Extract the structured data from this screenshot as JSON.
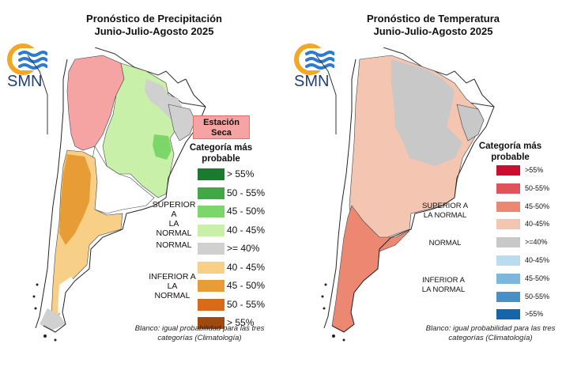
{
  "colors": {
    "prec_sup_55": "#1a7a2e",
    "prec_sup_50_55": "#42a844",
    "prec_sup_45_50": "#7dd66a",
    "prec_sup_40_45": "#c8f0a8",
    "prec_normal": "#d0d0d0",
    "prec_inf_40_45": "#f8cf86",
    "prec_inf_45_50": "#e89c35",
    "prec_inf_50_55": "#d86a1a",
    "prec_inf_55": "#a04a10",
    "dry": "#f6a3a3",
    "temp_sup_55": "#c8102e",
    "temp_sup_50_55": "#e0535a",
    "temp_sup_45_50": "#ec8872",
    "temp_sup_40_45": "#f4c5b0",
    "temp_normal": "#c8c8c8",
    "temp_inf_40_45": "#b9dcef",
    "temp_inf_45_50": "#7db7dc",
    "temp_inf_50_55": "#4a90c8",
    "temp_inf_55": "#1466a8",
    "logo_orange": "#f5a623",
    "logo_blue": "#2b7bd1"
  },
  "precip": {
    "title_line1": "Pronóstico de Precipitación",
    "title_line2": "Junio-Julio-Agosto 2025",
    "logo_text": "SMN",
    "dry_label_line1": "Estación",
    "dry_label_line2": "Seca",
    "legend_title_line1": "Categoría más",
    "legend_title_line2": "probable",
    "legend": [
      {
        "label": "> 55%",
        "color_key": "prec_sup_55"
      },
      {
        "label": "50 - 55%",
        "color_key": "prec_sup_50_55"
      },
      {
        "label": "45 - 50%",
        "color_key": "prec_sup_45_50"
      },
      {
        "label": "40 - 45%",
        "color_key": "prec_sup_40_45"
      },
      {
        "label": ">= 40%",
        "color_key": "prec_normal"
      },
      {
        "label": "40 - 45%",
        "color_key": "prec_inf_40_45"
      },
      {
        "label": "45 - 50%",
        "color_key": "prec_inf_45_50"
      },
      {
        "label": "50 - 55%",
        "color_key": "prec_inf_50_55"
      },
      {
        "label": "> 55%",
        "color_key": "prec_inf_55"
      }
    ],
    "superior_label_line1": "SUPERIOR A",
    "superior_label_line2": "LA NORMAL",
    "normal_label": "NORMAL",
    "inferior_label_line1": "INFERIOR A",
    "inferior_label_line2": "LA NORMAL",
    "note_line1": "Blanco: igual probabilidad para las tres",
    "note_line2": "categorías (Climatología)"
  },
  "temp": {
    "title_line1": "Pronóstico de Temperatura",
    "title_line2": "Junio-Julio-Agosto 2025",
    "logo_text": "SMN",
    "legend_title_line1": "Categoría más",
    "legend_title_line2": "probable",
    "legend": [
      {
        "label": ">55%",
        "color_key": "temp_sup_55"
      },
      {
        "label": "50-55%",
        "color_key": "temp_sup_50_55"
      },
      {
        "label": "45-50%",
        "color_key": "temp_sup_45_50"
      },
      {
        "label": "40-45%",
        "color_key": "temp_sup_40_45"
      },
      {
        "label": ">=40%",
        "color_key": "temp_normal"
      },
      {
        "label": "40-45%",
        "color_key": "temp_inf_40_45"
      },
      {
        "label": "45-50%",
        "color_key": "temp_inf_45_50"
      },
      {
        "label": "50-55%",
        "color_key": "temp_inf_50_55"
      },
      {
        "label": ">55%",
        "color_key": "temp_inf_55"
      }
    ],
    "superior_label_line1": "SUPERIOR A",
    "superior_label_line2": "LA NORMAL",
    "normal_label": "NORMAL",
    "inferior_label_line1": "INFERIOR A",
    "inferior_label_line2": "LA NORMAL",
    "note_line1": "Blanco: igual probabilidad para las tres",
    "note_line2": "categorías (Climatología)"
  }
}
